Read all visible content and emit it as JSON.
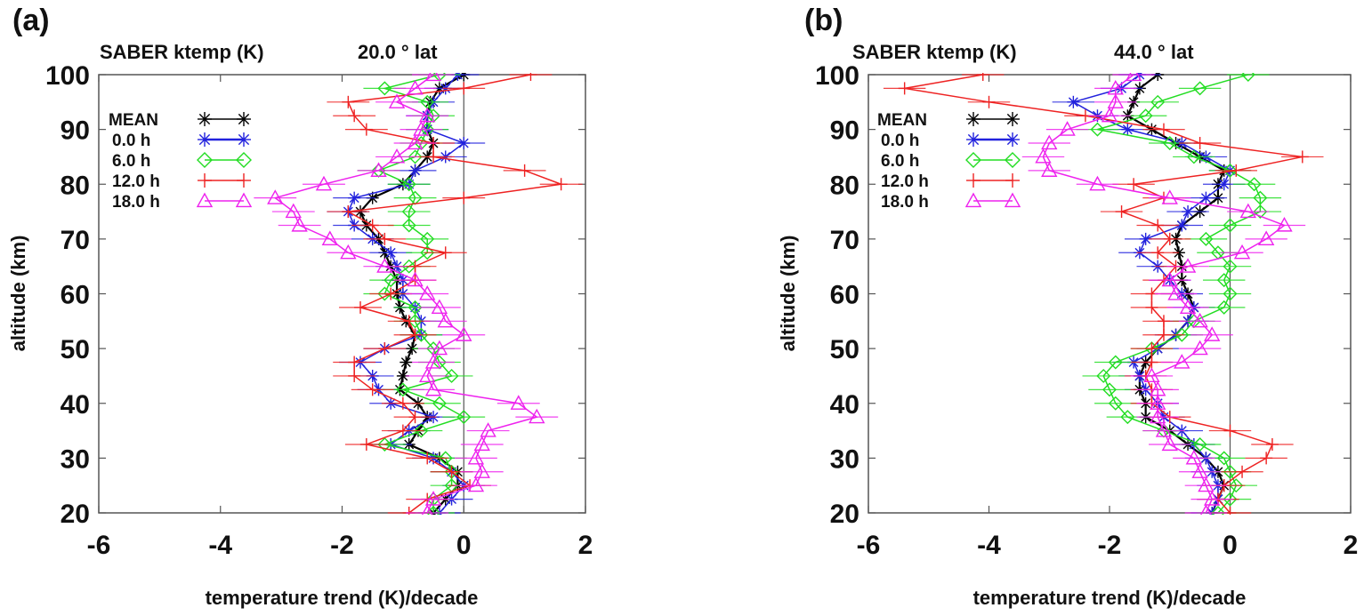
{
  "chart_data": [
    {
      "type": "line",
      "panel_label": "(a)",
      "title": "SABER ktemp (K)",
      "subtitle": "20.0 ° lat",
      "xlabel": "temperature trend (K)/decade",
      "ylabel": "altitude (km)",
      "xlim": [
        -6,
        2
      ],
      "ylim": [
        20,
        100
      ],
      "xticks": [
        "-6",
        "-4",
        "-2",
        "0",
        "2"
      ],
      "yticks": [
        "20",
        "30",
        "40",
        "50",
        "60",
        "70",
        "80",
        "90",
        "100"
      ],
      "legend_position": "top-left",
      "altitude": [
        20,
        22.5,
        25,
        27.5,
        30,
        32.5,
        35,
        37.5,
        40,
        42.5,
        45,
        47.5,
        50,
        52.5,
        55,
        57.5,
        60,
        62.5,
        65,
        67.5,
        70,
        72.5,
        75,
        77.5,
        80,
        82.5,
        85,
        87.5,
        90,
        92.5,
        95,
        97.5,
        100
      ],
      "series": [
        {
          "name": "MEAN",
          "marker": "asterisk",
          "color": "#000000",
          "values": [
            -0.5,
            -0.3,
            -0.1,
            -0.1,
            -0.4,
            -0.9,
            -0.75,
            -0.6,
            -0.75,
            -1.05,
            -1.0,
            -0.95,
            -0.85,
            -0.8,
            -0.95,
            -1.05,
            -1.1,
            -1.1,
            -1.2,
            -1.3,
            -1.4,
            -1.6,
            -1.7,
            -1.5,
            -1.0,
            -0.8,
            -0.6,
            -0.5,
            -0.6,
            -0.6,
            -0.55,
            -0.4,
            0.0
          ]
        },
        {
          "name": "0.0 h",
          "marker": "asterisk",
          "color": "#2222dd",
          "values": [
            -0.4,
            -0.2,
            0.0,
            -0.2,
            -0.5,
            -1.2,
            -0.9,
            -0.5,
            -1.2,
            -1.4,
            -1.5,
            -1.7,
            -1.3,
            -0.7,
            -0.7,
            -0.8,
            -1.0,
            -1.0,
            -1.1,
            -1.2,
            -1.5,
            -1.8,
            -1.9,
            -1.8,
            -0.9,
            -0.8,
            -0.3,
            0.0,
            -0.6,
            -0.6,
            -0.5,
            -0.3,
            -0.1
          ]
        },
        {
          "name": "6.0 h",
          "marker": "diamond",
          "color": "#22dd22",
          "values": [
            -0.5,
            -0.5,
            -0.2,
            -0.2,
            -0.3,
            -1.3,
            -0.7,
            0.0,
            -0.4,
            -1.0,
            -0.2,
            -0.4,
            -0.5,
            -0.7,
            -0.8,
            -0.8,
            -1.3,
            -1.2,
            -0.9,
            -0.6,
            -0.6,
            -0.9,
            -0.9,
            -0.8,
            -0.9,
            -1.4,
            -0.8,
            -0.7,
            -0.6,
            -0.5,
            -0.6,
            -1.3,
            -0.4
          ]
        },
        {
          "name": "12.0 h",
          "marker": "plus",
          "color": "#ee2222",
          "values": [
            -0.9,
            -0.6,
            0.1,
            -0.2,
            -0.6,
            -1.6,
            -1.0,
            -0.8,
            -1.0,
            -1.5,
            -1.8,
            -1.8,
            -1.3,
            -0.8,
            -0.9,
            -1.7,
            -1.2,
            -0.8,
            -0.8,
            -0.3,
            -1.3,
            -1.5,
            -1.9,
            0.0,
            1.6,
            1.0,
            -0.5,
            -0.5,
            -1.6,
            -1.8,
            -1.9,
            0.0,
            1.1
          ]
        },
        {
          "name": "18.0 h",
          "marker": "triangle",
          "color": "#ee22ee",
          "values": [
            -0.6,
            -0.5,
            0.2,
            0.3,
            0.2,
            0.3,
            0.4,
            1.2,
            0.9,
            -0.5,
            -0.6,
            -0.5,
            -0.4,
            0.0,
            -0.3,
            -0.4,
            -0.6,
            -0.8,
            -1.3,
            -1.9,
            -2.2,
            -2.7,
            -2.8,
            -3.1,
            -2.3,
            -1.4,
            -1.1,
            -0.8,
            -0.7,
            -0.6,
            -1.1,
            -0.8,
            -0.5
          ]
        }
      ]
    },
    {
      "type": "line",
      "panel_label": "(b)",
      "title": "SABER ktemp (K)",
      "subtitle": "44.0 ° lat",
      "xlabel": "temperature trend (K)/decade",
      "ylabel": "altitude (km)",
      "xlim": [
        -6,
        2
      ],
      "ylim": [
        20,
        100
      ],
      "xticks": [
        "-6",
        "-4",
        "-2",
        "0",
        "2"
      ],
      "yticks": [
        "20",
        "30",
        "40",
        "50",
        "60",
        "70",
        "80",
        "90",
        "100"
      ],
      "legend_position": "top-left",
      "altitude": [
        20,
        22.5,
        25,
        27.5,
        30,
        32.5,
        35,
        37.5,
        40,
        42.5,
        45,
        47.5,
        50,
        52.5,
        55,
        57.5,
        60,
        62.5,
        65,
        67.5,
        70,
        72.5,
        75,
        77.5,
        80,
        82.5,
        85,
        87.5,
        90,
        92.5,
        95,
        97.5,
        100
      ],
      "series": [
        {
          "name": "MEAN",
          "marker": "asterisk",
          "color": "#000000",
          "values": [
            -0.3,
            -0.2,
            -0.1,
            -0.2,
            -0.4,
            -0.7,
            -1.0,
            -1.4,
            -1.4,
            -1.5,
            -1.5,
            -1.4,
            -1.2,
            -0.9,
            -0.7,
            -0.6,
            -0.7,
            -0.8,
            -0.8,
            -0.85,
            -0.9,
            -0.8,
            -0.5,
            -0.2,
            -0.2,
            -0.1,
            -0.5,
            -0.9,
            -1.3,
            -1.7,
            -1.6,
            -1.5,
            -1.2
          ]
        },
        {
          "name": "0.0 h",
          "marker": "asterisk",
          "color": "#2222dd",
          "values": [
            -0.3,
            -0.2,
            -0.2,
            -0.3,
            -0.4,
            -0.6,
            -0.8,
            -1.1,
            -1.2,
            -1.4,
            -1.5,
            -1.6,
            -1.2,
            -0.9,
            -0.7,
            -0.6,
            -0.8,
            -1.0,
            -1.2,
            -1.5,
            -1.4,
            -0.8,
            -0.7,
            -0.4,
            -0.1,
            0.0,
            -0.4,
            -0.8,
            -1.7,
            -2.2,
            -2.6,
            -1.8,
            -1.5
          ]
        },
        {
          "name": "6.0 h",
          "marker": "diamond",
          "color": "#22dd22",
          "values": [
            -0.2,
            0.0,
            0.1,
            0.0,
            -0.1,
            -0.5,
            -1.1,
            -1.7,
            -1.9,
            -2.0,
            -2.1,
            -1.9,
            -1.3,
            -0.8,
            -0.6,
            -0.1,
            0.0,
            -0.1,
            0.0,
            -0.2,
            -0.4,
            0.0,
            0.5,
            0.5,
            0.4,
            0.0,
            -0.6,
            -1.0,
            -2.2,
            -1.4,
            -1.2,
            -0.5,
            0.3
          ]
        },
        {
          "name": "12.0 h",
          "marker": "plus",
          "color": "#ee2222",
          "values": [
            0.0,
            -0.2,
            -0.1,
            0.2,
            0.6,
            0.7,
            0.0,
            -1.0,
            -1.3,
            -1.3,
            -1.4,
            -1.3,
            -1.3,
            -1.1,
            -1.1,
            -1.3,
            -1.3,
            -1.1,
            -0.9,
            -1.2,
            -1.0,
            -1.2,
            -1.8,
            -1.1,
            -1.6,
            0.1,
            1.2,
            -0.5,
            -1.1,
            -2.4,
            -4.0,
            -5.4,
            -4.1
          ]
        },
        {
          "name": "18.0 h",
          "marker": "triangle",
          "color": "#ee22ee",
          "values": [
            -0.4,
            -0.3,
            -0.4,
            -0.5,
            -0.6,
            -1.0,
            -1.1,
            -1.2,
            -1.2,
            -1.2,
            -1.3,
            -0.8,
            -0.5,
            -0.3,
            -0.5,
            -0.7,
            -0.9,
            -1.0,
            -0.7,
            0.2,
            0.6,
            0.9,
            0.3,
            -1.0,
            -2.2,
            -3.0,
            -3.1,
            -3.0,
            -2.7,
            -2.0,
            -1.9,
            -1.9,
            -1.6
          ]
        }
      ]
    }
  ]
}
